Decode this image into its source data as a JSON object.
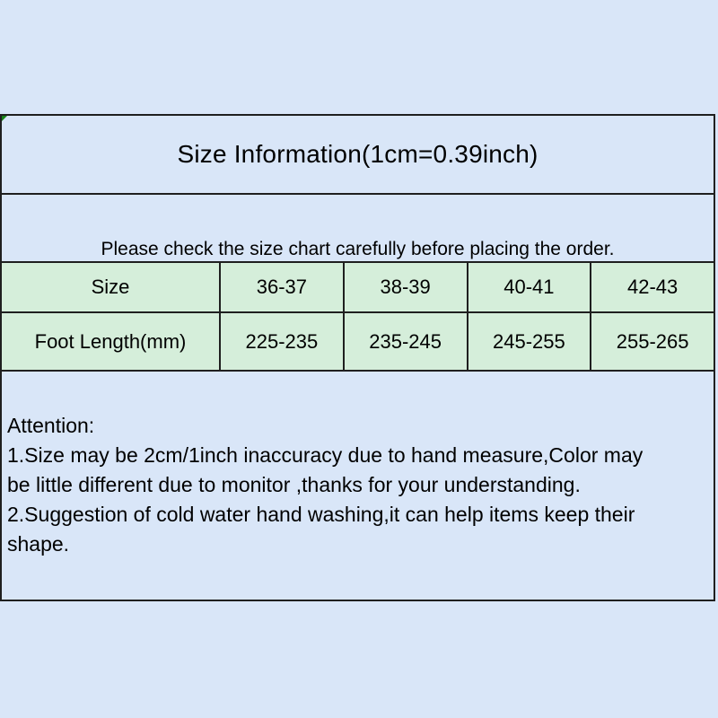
{
  "page": {
    "background_color": "#d9e6f8",
    "table_cell_color": "#d5eeda",
    "border_color": "#1f1f1f",
    "corner_artifact_color": "#178217"
  },
  "size_chart": {
    "title": "Size Information(1cm=0.39inch)",
    "notice": "Please check the size chart carefully before placing the order.",
    "table": {
      "rows": [
        {
          "header": "Size",
          "values": [
            "36-37",
            "38-39",
            "40-41",
            "42-43"
          ]
        },
        {
          "header": "Foot Length(mm)",
          "values": [
            "225-235",
            "235-245",
            "245-255",
            "255-265"
          ]
        }
      ]
    },
    "attention": {
      "heading": "Attention:",
      "line1": "1.Size may be 2cm/1inch inaccuracy due to hand measure,Color may",
      "line2": "be little different due to monitor ,thanks for your understanding.",
      "line3": "2.Suggestion of cold water hand washing,it can help items keep their",
      "line4": "shape."
    }
  }
}
